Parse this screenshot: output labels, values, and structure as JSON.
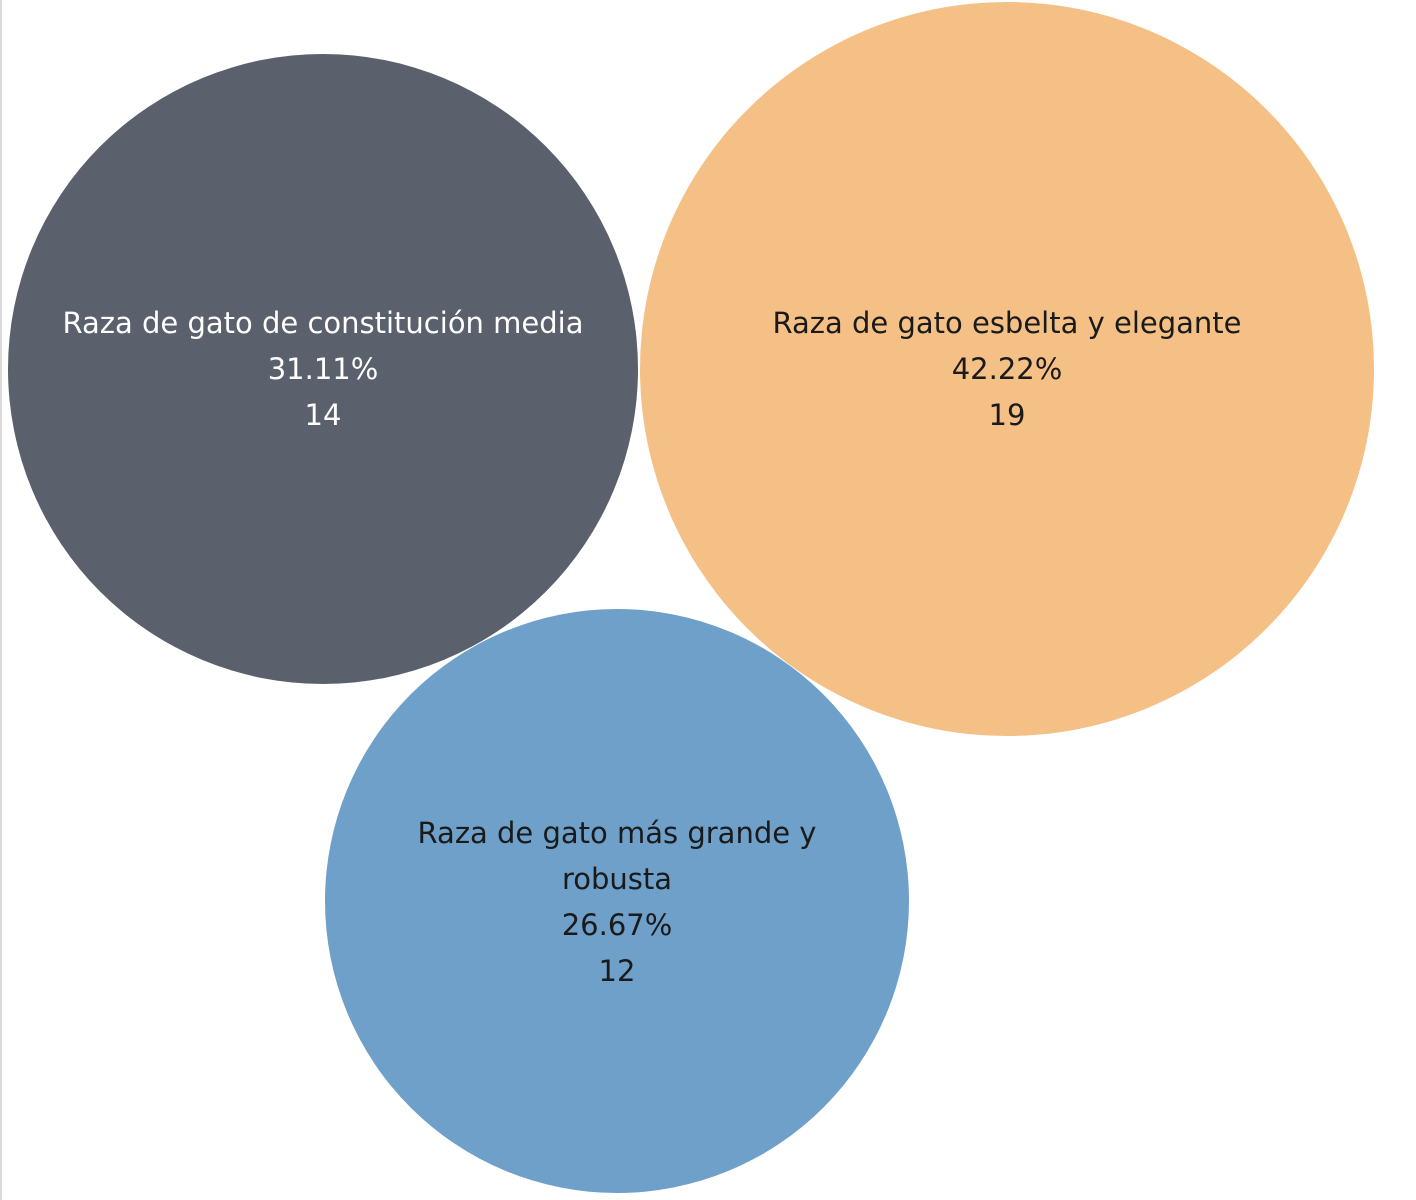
{
  "chart_data": {
    "type": "bubble",
    "title": "",
    "series": [
      {
        "name": "Raza de gato esbelta y elegante",
        "percent": "42.22%",
        "value": 19,
        "color": "#f4c086",
        "text_color": "#1a1a1a"
      },
      {
        "name": "Raza de gato de constitución media",
        "percent": "31.11%",
        "value": 14,
        "color": "#5a606c",
        "text_color": "#ffffff"
      },
      {
        "name": "Raza de gato más grande y robusta",
        "percent": "26.67%",
        "value": 12,
        "color": "#6ea0c9",
        "text_color": "#1a1a1a"
      }
    ]
  }
}
